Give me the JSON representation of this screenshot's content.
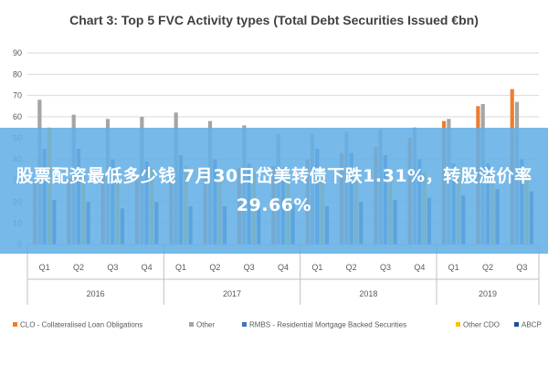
{
  "chart_data": {
    "type": "bar",
    "title": "Chart 3: Top 5 FVC Activity types (Total Debt Securities Issued €bn)",
    "xlabel": "",
    "ylabel": "",
    "ylim": [
      0,
      90
    ],
    "yticks": [
      0,
      10,
      20,
      30,
      40,
      50,
      60,
      70,
      80,
      90
    ],
    "grid": true,
    "legend_position": "bottom",
    "categories": [
      "Q1",
      "Q2",
      "Q3",
      "Q4",
      "Q1",
      "Q2",
      "Q3",
      "Q4",
      "Q1",
      "Q2",
      "Q3",
      "Q4",
      "Q1",
      "Q2",
      "Q3"
    ],
    "year_groups": [
      {
        "label": "2016",
        "count": 4
      },
      {
        "label": "2017",
        "count": 4
      },
      {
        "label": "2018",
        "count": 4
      },
      {
        "label": "2019",
        "count": 3
      }
    ],
    "series": [
      {
        "name": "CLO - Collateralised Loan Obligations",
        "color": "#ed7d31",
        "values": [
          30,
          31,
          33,
          32,
          33,
          35,
          36,
          37,
          40,
          43,
          46,
          50,
          58,
          65,
          73
        ]
      },
      {
        "name": "Other",
        "color": "#a5a5a5",
        "values": [
          68,
          61,
          59,
          60,
          62,
          58,
          56,
          52,
          52,
          53,
          54,
          55,
          59,
          66,
          67
        ]
      },
      {
        "name": "RMBS - Residential Mortgage Backed Securities",
        "color": "#4472c4",
        "values": [
          45,
          45,
          40,
          39,
          42,
          40,
          38,
          36,
          45,
          43,
          42,
          40,
          38,
          38,
          40
        ]
      },
      {
        "name": "Other CDO",
        "color": "#ffc000",
        "values": [
          55,
          33,
          31,
          36,
          37,
          35,
          34,
          35,
          36,
          35,
          34,
          34,
          36,
          34,
          36
        ]
      },
      {
        "name": "ABCP",
        "color": "#1f4e9b",
        "values": [
          21,
          20,
          17,
          20,
          18,
          18,
          19,
          19,
          18,
          20,
          21,
          22,
          23,
          26,
          25
        ]
      }
    ]
  },
  "overlay": {
    "text": "股票配资最低多少钱 7月30日岱美转债下跌1.31%，转股溢价率29.66%"
  }
}
